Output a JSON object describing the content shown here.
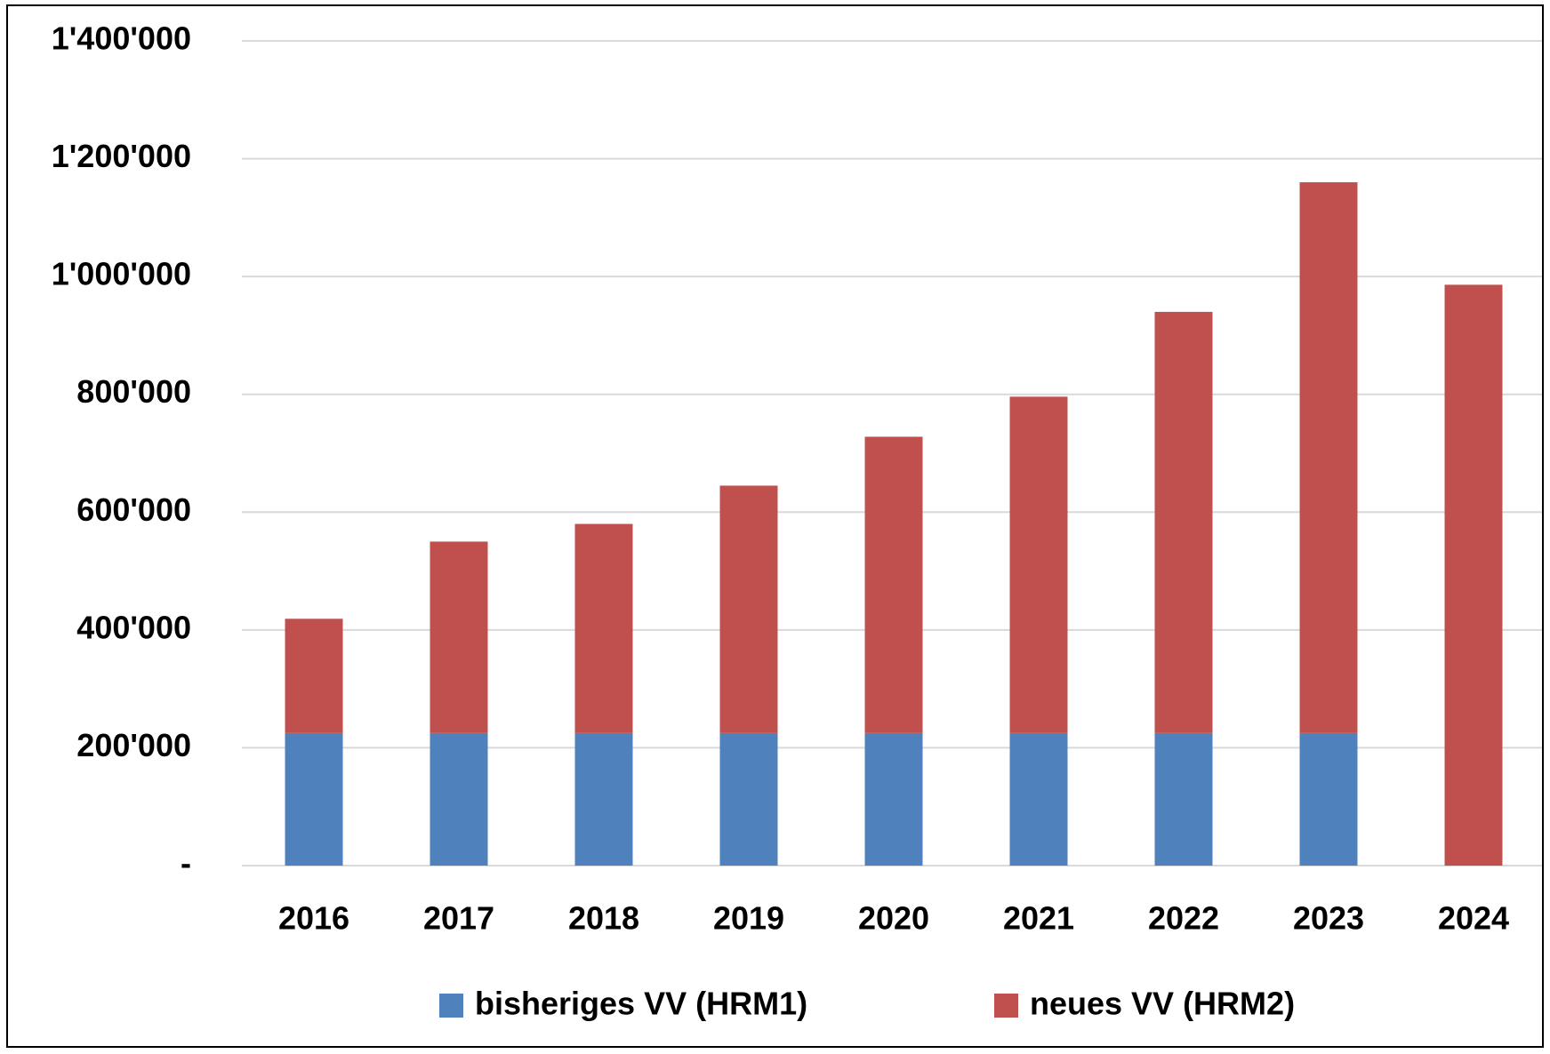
{
  "chart_data": {
    "type": "stacked_bar",
    "categories": [
      "2016",
      "2017",
      "2018",
      "2019",
      "2020",
      "2021",
      "2022",
      "2023",
      "2024"
    ],
    "series": [
      {
        "name": "bisheriges VV (HRM1)",
        "color": "#4f81bd",
        "values": [
          225000,
          225000,
          225000,
          225000,
          225000,
          225000,
          225000,
          225000,
          0
        ]
      },
      {
        "name": "neues VV (HRM2)",
        "color": "#c0504d",
        "values": [
          194000,
          325000,
          355000,
          420000,
          503000,
          571000,
          715000,
          935000,
          986000
        ]
      }
    ],
    "ylim": [
      0,
      1400000
    ],
    "yticks": [
      {
        "value": 0,
        "label": "-"
      },
      {
        "value": 200000,
        "label": "200'000"
      },
      {
        "value": 400000,
        "label": "400'000"
      },
      {
        "value": 600000,
        "label": "600'000"
      },
      {
        "value": 800000,
        "label": "800'000"
      },
      {
        "value": 1000000,
        "label": "1'000'000"
      },
      {
        "value": 1200000,
        "label": "1'200'000"
      },
      {
        "value": 1400000,
        "label": "1'400'000"
      }
    ],
    "grid": true,
    "legend": "bottom"
  }
}
